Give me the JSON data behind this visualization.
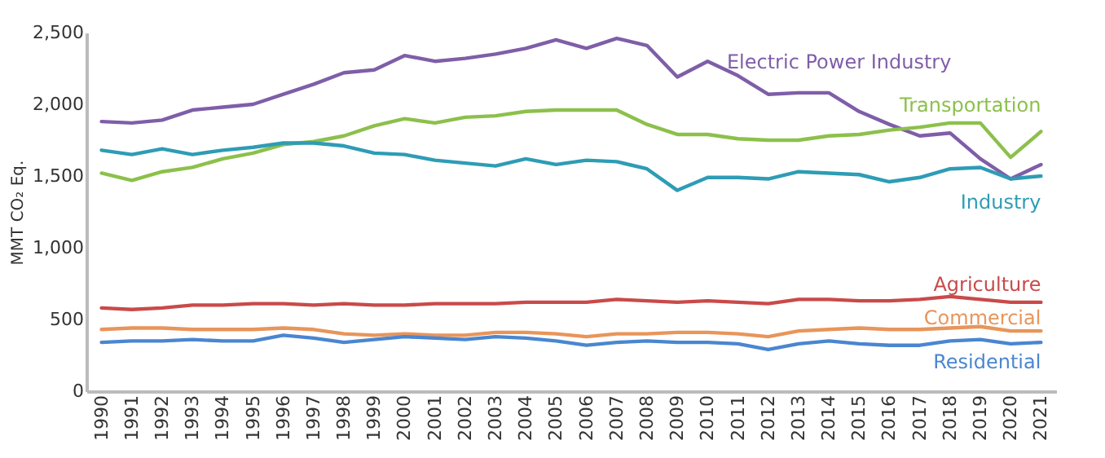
{
  "chart_data": {
    "type": "line",
    "ylabel": "MMT CO₂ Eq.",
    "categories": [
      "1990",
      "1991",
      "1992",
      "1993",
      "1994",
      "1995",
      "1996",
      "1997",
      "1998",
      "1999",
      "2000",
      "2001",
      "2002",
      "2003",
      "2004",
      "2005",
      "2006",
      "2007",
      "2008",
      "2009",
      "2010",
      "2011",
      "2012",
      "2013",
      "2014",
      "2015",
      "2016",
      "2017",
      "2018",
      "2019",
      "2020",
      "2021"
    ],
    "ylim": [
      0,
      2500
    ],
    "yticks": [
      {
        "value": 0,
        "label": "0"
      },
      {
        "value": 500,
        "label": "500"
      },
      {
        "value": 1000,
        "label": "1,000"
      },
      {
        "value": 1500,
        "label": "1,500"
      },
      {
        "value": 2000,
        "label": "2,000"
      },
      {
        "value": 2500,
        "label": "2,500"
      }
    ],
    "grid": false,
    "legend": false,
    "marker": "none",
    "line_style": "solid",
    "series": [
      {
        "name": "Electric Power Industry",
        "color": "#7f5ea8",
        "values": [
          1880,
          1870,
          1890,
          1960,
          1980,
          2000,
          2070,
          2140,
          2220,
          2240,
          2340,
          2300,
          2320,
          2350,
          2390,
          2450,
          2390,
          2460,
          2410,
          2190,
          2300,
          2200,
          2070,
          2080,
          2080,
          1950,
          1860,
          1780,
          1800,
          1620,
          1480,
          1580
        ]
      },
      {
        "name": "Transportation",
        "color": "#8cc04b",
        "values": [
          1520,
          1470,
          1530,
          1560,
          1620,
          1660,
          1720,
          1740,
          1780,
          1850,
          1900,
          1870,
          1910,
          1920,
          1950,
          1960,
          1960,
          1960,
          1860,
          1790,
          1790,
          1760,
          1750,
          1750,
          1780,
          1790,
          1820,
          1840,
          1870,
          1870,
          1630,
          1810
        ]
      },
      {
        "name": "Industry",
        "color": "#2e9cb5",
        "values": [
          1680,
          1650,
          1690,
          1650,
          1680,
          1700,
          1730,
          1730,
          1710,
          1660,
          1650,
          1610,
          1590,
          1570,
          1620,
          1580,
          1610,
          1600,
          1550,
          1400,
          1490,
          1490,
          1480,
          1530,
          1520,
          1510,
          1460,
          1490,
          1550,
          1560,
          1480,
          1500
        ]
      },
      {
        "name": "Agriculture",
        "color": "#c94a4a",
        "values": [
          580,
          570,
          580,
          600,
          600,
          610,
          610,
          600,
          610,
          600,
          600,
          610,
          610,
          610,
          620,
          620,
          620,
          640,
          630,
          620,
          630,
          620,
          610,
          640,
          640,
          630,
          630,
          640,
          660,
          640,
          620,
          620
        ]
      },
      {
        "name": "Commercial",
        "color": "#e8955a",
        "values": [
          430,
          440,
          440,
          430,
          430,
          430,
          440,
          430,
          400,
          390,
          400,
          390,
          390,
          410,
          410,
          400,
          380,
          400,
          400,
          410,
          410,
          400,
          380,
          420,
          430,
          440,
          430,
          430,
          440,
          450,
          420,
          420
        ]
      },
      {
        "name": "Residential",
        "color": "#4a86d0",
        "values": [
          340,
          350,
          350,
          360,
          350,
          350,
          390,
          370,
          340,
          360,
          380,
          370,
          360,
          380,
          370,
          350,
          320,
          340,
          350,
          340,
          340,
          330,
          290,
          330,
          350,
          330,
          320,
          320,
          350,
          360,
          330,
          340
        ]
      }
    ]
  }
}
